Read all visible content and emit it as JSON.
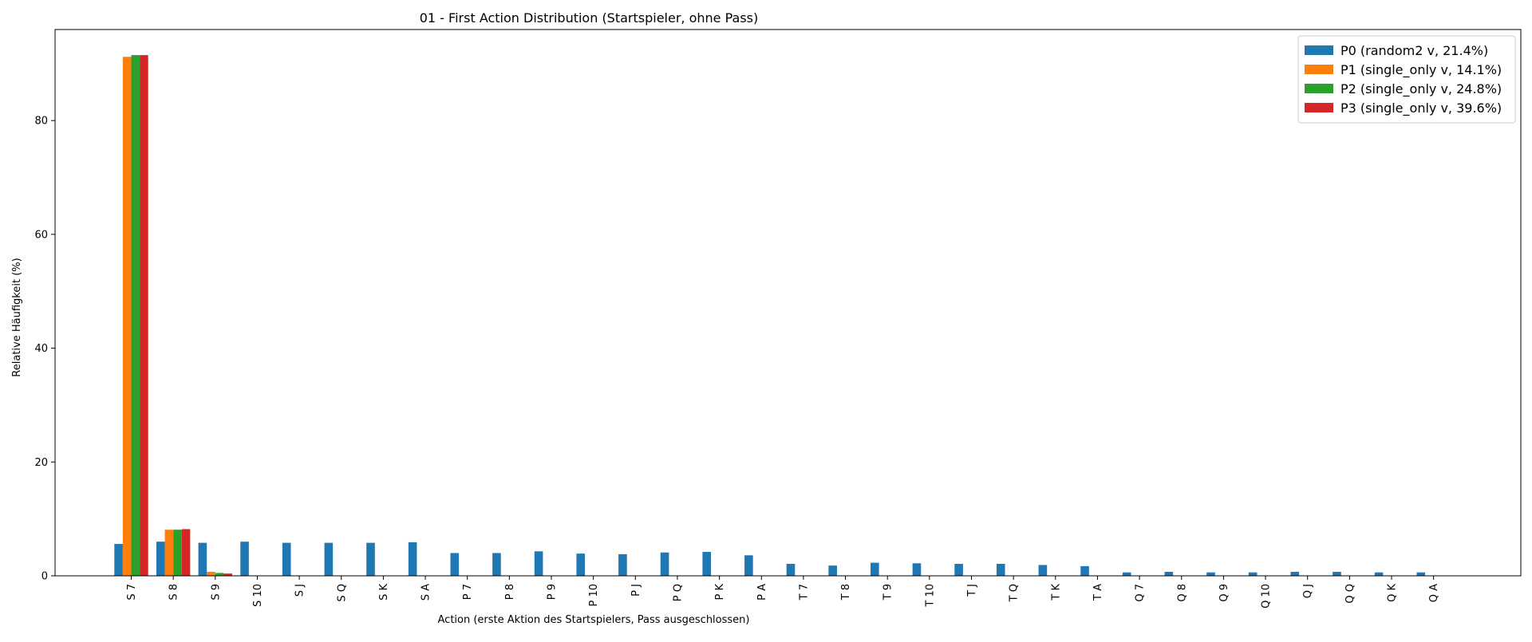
{
  "chart_data": {
    "type": "bar",
    "title": "01 - First Action Distribution (Startspieler, ohne Pass)",
    "xlabel": "Action (erste Aktion des Startspielers, Pass ausgeschlossen)",
    "ylabel": "Relative Häufigkeit (%)",
    "ylim": [
      0,
      96
    ],
    "yticks": [
      0,
      20,
      40,
      60,
      80
    ],
    "grid": false,
    "legend_position": "top-right",
    "categories": [
      "S 7",
      "S 8",
      "S 9",
      "S 10",
      "S J",
      "S Q",
      "S K",
      "S A",
      "P 7",
      "P 8",
      "P 9",
      "P 10",
      "P J",
      "P Q",
      "P K",
      "P A",
      "T 7",
      "T 8",
      "T 9",
      "T 10",
      "T J",
      "T Q",
      "T K",
      "T A",
      "Q 7",
      "Q 8",
      "Q 9",
      "Q 10",
      "Q J",
      "Q Q",
      "Q K",
      "Q A"
    ],
    "series": [
      {
        "name": "P0 (random2 v, 21.4%)",
        "color": "#1f77b4",
        "values": [
          5.6,
          6.0,
          5.8,
          6.0,
          5.8,
          5.8,
          5.8,
          5.9,
          4.0,
          4.0,
          4.3,
          3.9,
          3.8,
          4.1,
          4.2,
          3.6,
          2.1,
          1.8,
          2.3,
          2.2,
          2.1,
          2.1,
          1.9,
          1.7,
          0.6,
          0.7,
          0.6,
          0.6,
          0.7,
          0.7,
          0.6,
          0.6
        ]
      },
      {
        "name": "P1 (single_only v, 14.1%)",
        "color": "#ff7f0e",
        "values": [
          91.2,
          8.1,
          0.7,
          0,
          0,
          0,
          0,
          0,
          0,
          0,
          0,
          0,
          0,
          0,
          0,
          0,
          0,
          0,
          0,
          0,
          0,
          0,
          0,
          0,
          0,
          0,
          0,
          0,
          0,
          0,
          0,
          0
        ]
      },
      {
        "name": "P2 (single_only v, 24.8%)",
        "color": "#2ca02c",
        "values": [
          91.5,
          8.1,
          0.5,
          0,
          0,
          0,
          0,
          0,
          0,
          0,
          0,
          0,
          0,
          0,
          0,
          0,
          0,
          0,
          0,
          0,
          0,
          0,
          0,
          0,
          0,
          0,
          0,
          0,
          0,
          0,
          0,
          0
        ]
      },
      {
        "name": "P3 (single_only v, 39.6%)",
        "color": "#d62728",
        "values": [
          91.5,
          8.2,
          0.4,
          0,
          0,
          0,
          0,
          0,
          0,
          0,
          0,
          0,
          0,
          0,
          0,
          0,
          0,
          0,
          0,
          0,
          0,
          0,
          0,
          0,
          0,
          0,
          0,
          0,
          0,
          0,
          0,
          0
        ]
      }
    ]
  }
}
